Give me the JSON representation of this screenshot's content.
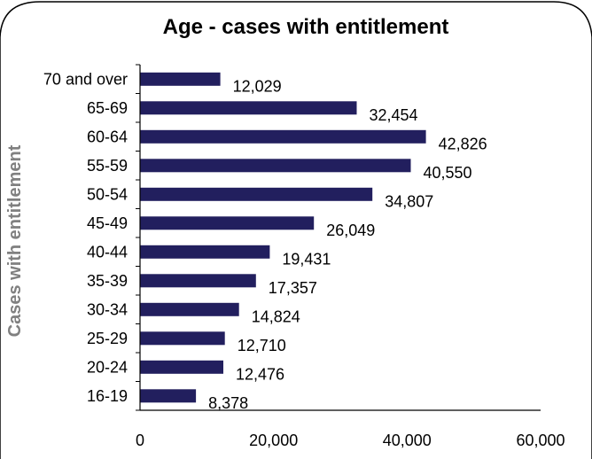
{
  "chart_data": {
    "type": "bar",
    "orientation": "horizontal",
    "title": "Age - cases with entitlement",
    "ylabel": "Cases with entitlement",
    "xlabel": "",
    "categories": [
      "70 and over",
      "65-69",
      "60-64",
      "55-59",
      "50-54",
      "45-49",
      "40-44",
      "35-39",
      "30-34",
      "25-29",
      "20-24",
      "16-19"
    ],
    "values": [
      12029,
      32454,
      42826,
      40550,
      34807,
      26049,
      19431,
      17357,
      14824,
      12710,
      12476,
      8378
    ],
    "value_labels": [
      "12,029",
      "32,454",
      "42,826",
      "40,550",
      "34,807",
      "26,049",
      "19,431",
      "17,357",
      "14,824",
      "12,710",
      "12,476",
      "8,378"
    ],
    "xlim": [
      0,
      60000
    ],
    "x_ticks": [
      0,
      20000,
      40000,
      60000
    ],
    "x_tick_labels": [
      "0",
      "20,000",
      "40,000",
      "60,000"
    ],
    "grid": false,
    "legend": "none",
    "colors": {
      "bar": "#221f5e",
      "axis": "#000000",
      "axis_label": "#808080",
      "background": "#ffffff"
    }
  }
}
